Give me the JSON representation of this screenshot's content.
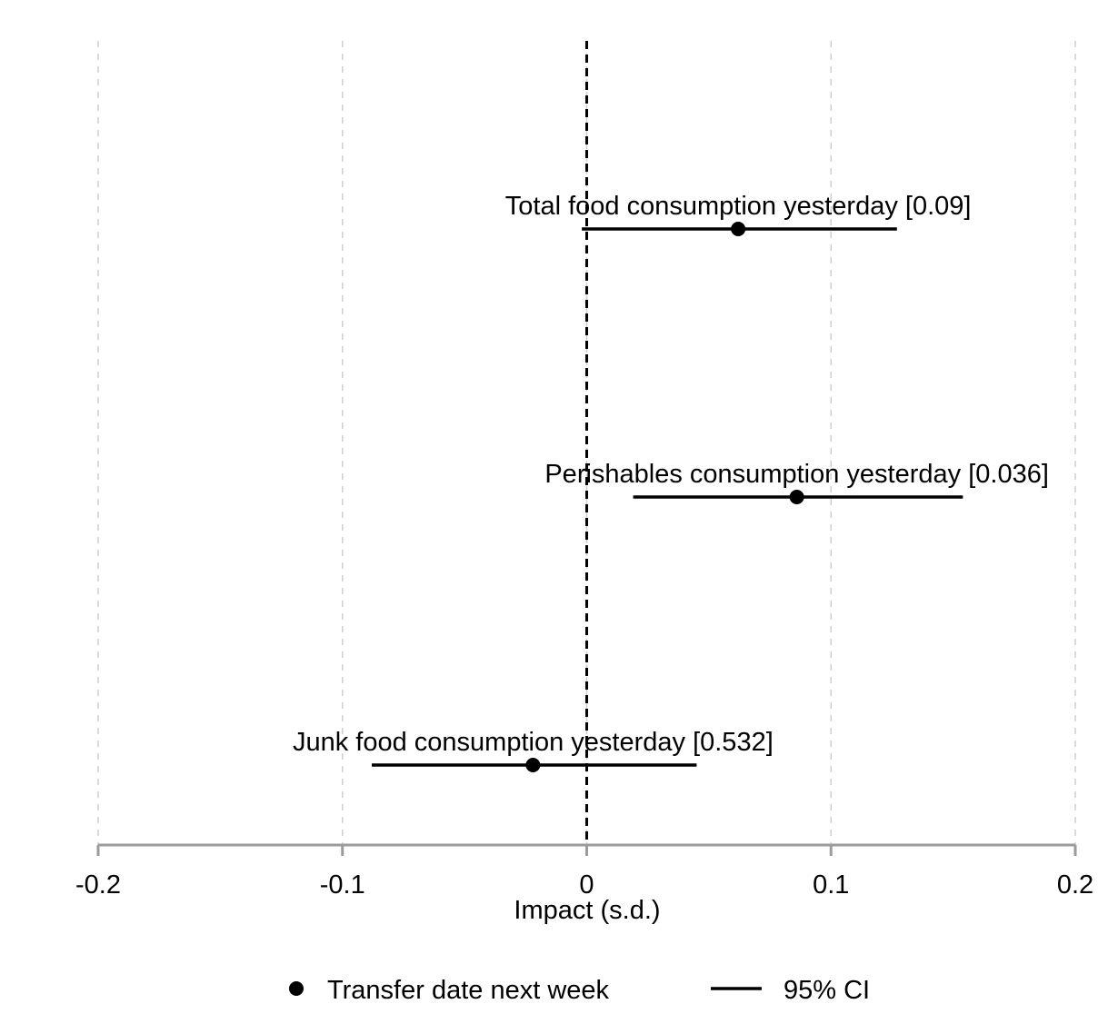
{
  "chart_data": {
    "type": "scatter",
    "subtype": "coefficient-plot",
    "title": "",
    "xlabel": "Impact (s.d.)",
    "ylabel": "",
    "xlim": [
      -0.2,
      0.2
    ],
    "xticks": [
      -0.2,
      -0.1,
      0,
      0.1,
      0.2
    ],
    "xtick_labels": [
      "-0.2",
      "-0.1",
      "0",
      "0.1",
      "0.2"
    ],
    "grid": "vertical dashed at x ticks",
    "reference_line": 0,
    "legend_position": "bottom",
    "legend": {
      "marker_label": "Transfer date next week",
      "line_label": "95% CI"
    },
    "points": [
      {
        "label": "Total food consumption yesterday [0.09]",
        "estimate": 0.062,
        "ci_low": -0.002,
        "ci_high": 0.127
      },
      {
        "label": "Perishables consumption yesterday [0.036]",
        "estimate": 0.086,
        "ci_low": 0.019,
        "ci_high": 0.154
      },
      {
        "label": "Junk food consumption yesterday [0.532]",
        "estimate": -0.022,
        "ci_low": -0.088,
        "ci_high": 0.045
      }
    ]
  }
}
